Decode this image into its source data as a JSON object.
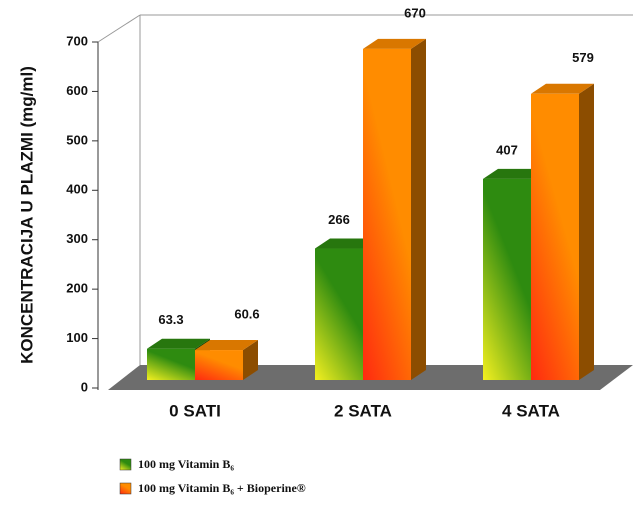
{
  "chart_data": {
    "type": "bar3d",
    "y_label": "KONCENTRACIJA U PLAZMI  (mg/ml)",
    "categories": [
      "0 SATI",
      "2 SATA",
      "4 SATA"
    ],
    "series": [
      {
        "name": "100 mg Vitamin B₆",
        "color": "#2e8b10",
        "values": [
          63.3,
          266,
          407
        ]
      },
      {
        "name": "100 mg Vitamin B₆ + Bioperine®",
        "color": "#ff8c00",
        "values": [
          60.6,
          670,
          579
        ]
      }
    ],
    "ylim": [
      0,
      700
    ],
    "yticks": [
      0,
      100,
      200,
      300,
      400,
      500,
      600,
      700
    ]
  }
}
